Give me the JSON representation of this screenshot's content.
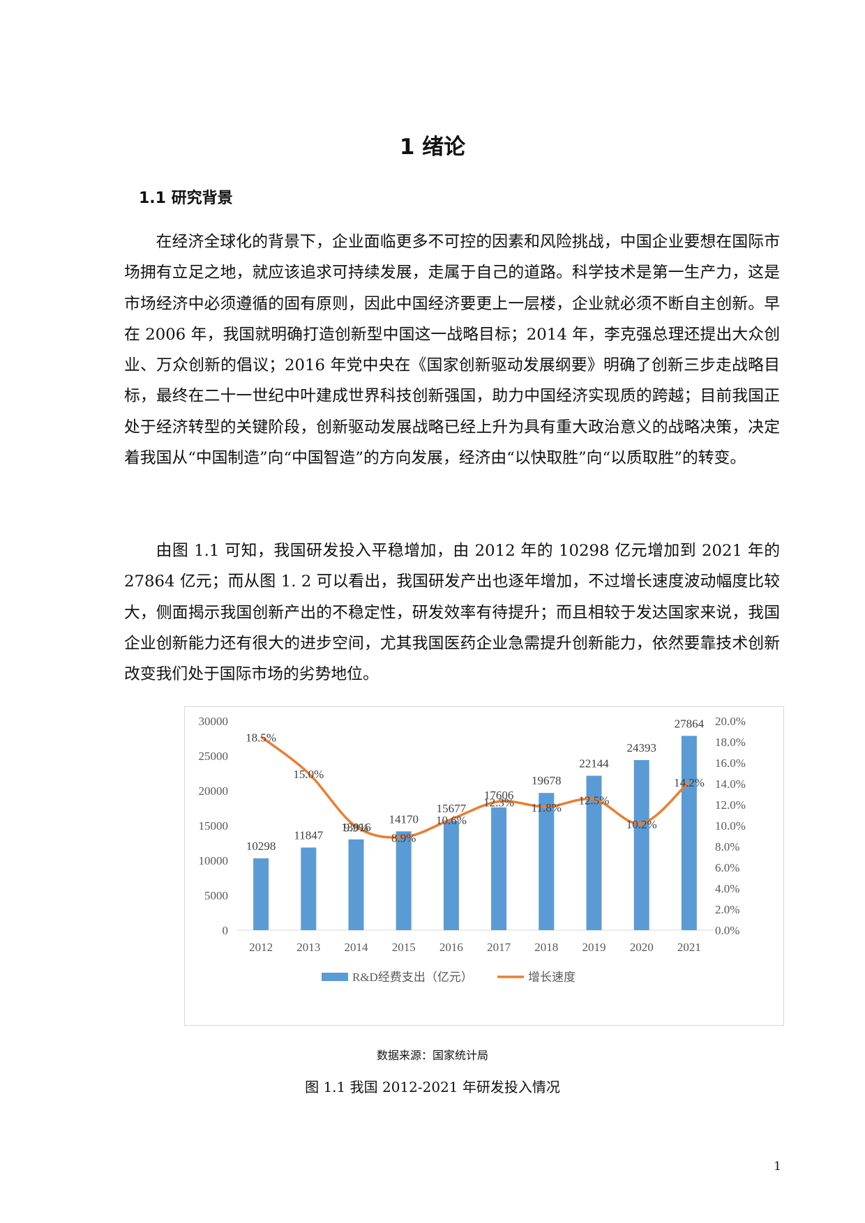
{
  "page": {
    "chapter_title": "1  绪论",
    "section_heading": "1.1  研究背景",
    "paragraphs": [
      "在经济全球化的背景下，企业面临更多不可控的因素和风险挑战，中国企业要想在国际市场拥有立足之地，就应该追求可持续发展，走属于自己的道路。科学技术是第一生产力，这是市场经济中必须遵循的固有原则，因此中国经济要更上一层楼，企业就必须不断自主创新。早在 2006 年，我国就明确打造创新型中国这一战略目标；2014 年，李克强总理还提出大众创业、万众创新的倡议；2016 年党中央在《国家创新驱动发展纲要》明确了创新三步走战略目标，最终在二十一世纪中叶建成世界科技创新强国，助力中国经济实现质的跨越；目前我国正处于经济转型的关键阶段，创新驱动发展战略已经上升为具有重大政治意义的战略决策，决定着我国从“中国制造”向“中国智造”的方向发展，经济由“以快取胜”向“以质取胜”的转变。",
      "由图 1.1 可知，我国研发投入平稳增加，由 2012 年的 10298 亿元增加到 2021 年的 27864 亿元；而从图 1. 2 可以看出，我国研发产出也逐年增加，不过增长速度波动幅度比较大，侧面揭示我国创新产出的不稳定性，研发效率有待提升；而且相较于发达国家来说，我国企业创新能力还有很大的进步空间，尤其我国医药企业急需提升创新能力，依然要靠技术创新改变我们处于国际市场的劣势地位。"
    ],
    "source_note": "数据来源：国家统计局",
    "figure_caption": "图 1.1  我国 2012-2021 年研发投入情况",
    "page_number": "1"
  },
  "chart_data": {
    "type": "bar",
    "categories": [
      "2012",
      "2013",
      "2014",
      "2015",
      "2016",
      "2017",
      "2018",
      "2019",
      "2020",
      "2021"
    ],
    "series": [
      {
        "name": "R&D经费支出（亿元）",
        "type": "bar",
        "axis": "left",
        "values": [
          10298,
          11847,
          13016,
          14170,
          15677,
          17606,
          19678,
          22144,
          24393,
          27864
        ],
        "labels": [
          "10298",
          "11847",
          "13016",
          "14170",
          "15677",
          "17606",
          "19678",
          "22144",
          "24393",
          "27864"
        ],
        "color": "#5b9bd5"
      },
      {
        "name": "增长速度",
        "type": "line",
        "axis": "right",
        "values": [
          18.5,
          15.0,
          9.9,
          8.9,
          10.6,
          12.3,
          11.8,
          12.5,
          10.2,
          14.2
        ],
        "labels": [
          "18.5%",
          "15.0%",
          "9.9%",
          "8.9%",
          "10.6%",
          "12.3%",
          "11.8%",
          "12.5%",
          "10.2%",
          "14.2%"
        ],
        "color": "#ed7d31"
      }
    ],
    "y_left": {
      "lim": [
        0,
        30000
      ],
      "ticks": [
        "0",
        "5000",
        "10000",
        "15000",
        "20000",
        "25000",
        "30000"
      ]
    },
    "y_right": {
      "lim": [
        0,
        20
      ],
      "ticks": [
        "0.0%",
        "2.0%",
        "4.0%",
        "6.0%",
        "8.0%",
        "10.0%",
        "12.0%",
        "14.0%",
        "16.0%",
        "18.0%",
        "20.0%"
      ]
    },
    "grid": false,
    "legend_position": "bottom",
    "title": "",
    "xlabel": "",
    "ylabel": ""
  }
}
